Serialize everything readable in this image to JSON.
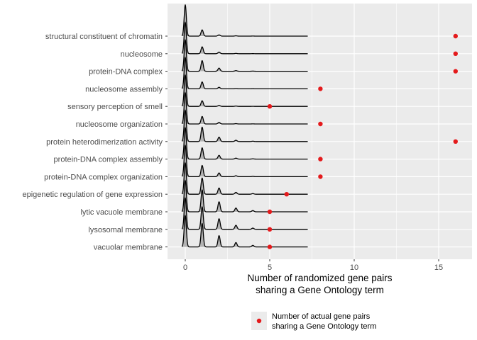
{
  "chart_data": {
    "type": "ridgeline",
    "title": "",
    "xlabel_lines": [
      "Number of randomized gene pairs",
      "sharing a Gene Ontology term"
    ],
    "ylabel": "",
    "xlim": [
      -1,
      17
    ],
    "xticks": [
      0,
      5,
      10,
      15
    ],
    "grid": true,
    "categories": [
      "structural constituent of chromatin",
      "nucleosome",
      "protein-DNA complex",
      "nucleosome assembly",
      "sensory perception of smell",
      "nucleosome organization",
      "protein heterodimerization activity",
      "protein-DNA complex assembly",
      "protein-DNA complex organization",
      "epigenetic regulation of gene expression",
      "lytic vacuole membrane",
      "lysosomal membrane",
      "vacuolar membrane"
    ],
    "actual_pairs": [
      16,
      16,
      16,
      8,
      5,
      8,
      16,
      8,
      8,
      6,
      5,
      5,
      5
    ],
    "randomized_peak_heights": [
      [
        1.0,
        0.2,
        0.04,
        0.01,
        0.003
      ],
      [
        1.0,
        0.22,
        0.05,
        0.01,
        0.003
      ],
      [
        1.0,
        0.34,
        0.1,
        0.02,
        0.005
      ],
      [
        1.0,
        0.22,
        0.05,
        0.01,
        0.003
      ],
      [
        1.0,
        0.18,
        0.03,
        0.01,
        0.002
      ],
      [
        1.0,
        0.24,
        0.05,
        0.01,
        0.003
      ],
      [
        1.0,
        0.46,
        0.14,
        0.04,
        0.01
      ],
      [
        1.0,
        0.36,
        0.12,
        0.03,
        0.008
      ],
      [
        1.0,
        0.36,
        0.12,
        0.03,
        0.008
      ],
      [
        1.0,
        0.52,
        0.2,
        0.06,
        0.02
      ],
      [
        1.0,
        0.7,
        0.32,
        0.12,
        0.04
      ],
      [
        1.0,
        0.72,
        0.34,
        0.13,
        0.04
      ],
      [
        1.0,
        0.75,
        0.36,
        0.14,
        0.05
      ]
    ],
    "legend": {
      "label_lines": [
        "Number of actual gene pairs",
        "sharing a Gene Ontology term"
      ],
      "position": "bottom"
    },
    "colors": {
      "panel": "#ebebeb",
      "grid": "#ffffff",
      "ridge_fill": "#b3b3b3",
      "ridge_line": "#000000",
      "actual_point": "#e41a1c"
    }
  }
}
